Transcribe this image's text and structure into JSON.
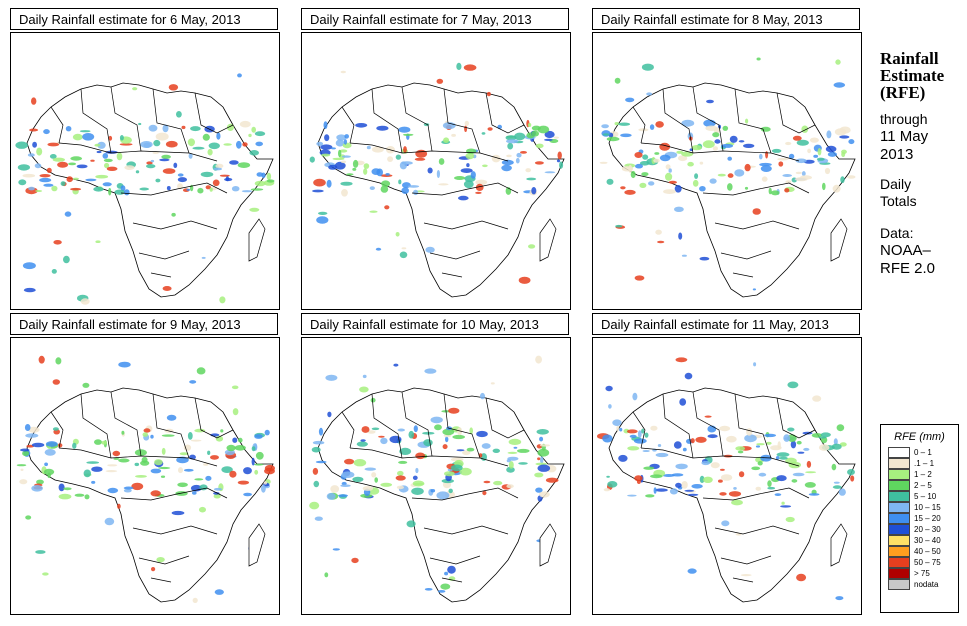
{
  "panels": [
    {
      "title": "Daily Rainfall estimate for  6 May, 2013"
    },
    {
      "title": "Daily Rainfall estimate for  7 May, 2013"
    },
    {
      "title": "Daily Rainfall estimate for  8 May, 2013"
    },
    {
      "title": "Daily Rainfall estimate for  9 May, 2013"
    },
    {
      "title": "Daily Rainfall estimate for  10 May, 2013"
    },
    {
      "title": "Daily Rainfall estimate for  11 May, 2013"
    }
  ],
  "sidebar": {
    "title_line1": "Rainfall",
    "title_line2": "Estimate",
    "title_line3": "(RFE)",
    "through": "through",
    "date_line1": "11 May",
    "date_line2": "2013",
    "totals_line1": "Daily",
    "totals_line2": "Totals",
    "data_line1": "Data:",
    "data_line2": "NOAA–",
    "data_line3": "RFE 2.0"
  },
  "legend": {
    "title": "RFE (mm)",
    "items": [
      {
        "label": "0 – 1",
        "color": "#ffffff"
      },
      {
        "label": ".1 – 1",
        "color": "#f2e6d0"
      },
      {
        "label": "1 – 2",
        "color": "#a7f07f"
      },
      {
        "label": "2 – 5",
        "color": "#5fd65f"
      },
      {
        "label": "5 – 10",
        "color": "#3fbf9f"
      },
      {
        "label": "10 – 15",
        "color": "#7fb6f2"
      },
      {
        "label": "15 – 20",
        "color": "#3f8ff0"
      },
      {
        "label": "20 – 30",
        "color": "#1f4fd6"
      },
      {
        "label": "30 – 40",
        "color": "#ffe066"
      },
      {
        "label": "40 – 50",
        "color": "#ff9f1f"
      },
      {
        "label": "50 – 75",
        "color": "#e63f1f"
      },
      {
        "label": "> 75",
        "color": "#b00000"
      },
      {
        "label": "nodata",
        "color": "#c8c8c8"
      }
    ]
  }
}
